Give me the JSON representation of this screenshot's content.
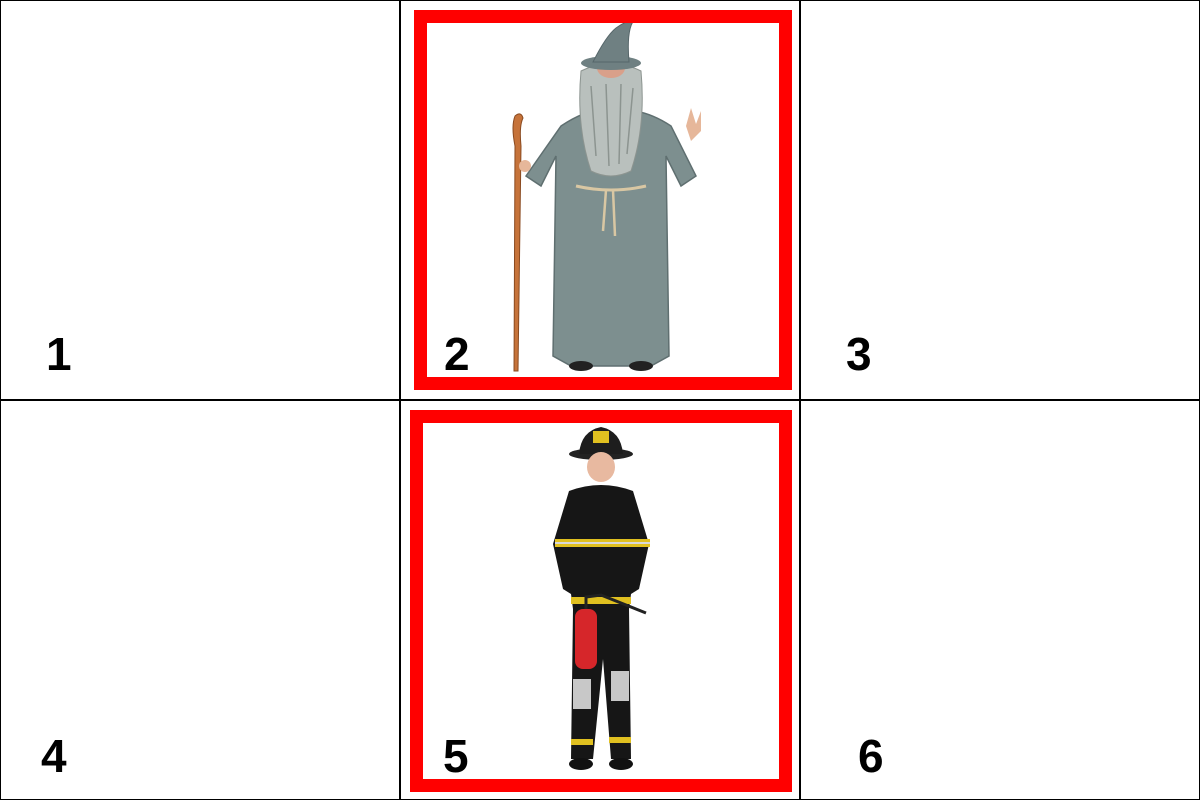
{
  "cells": [
    {
      "number": "1",
      "selected": false,
      "content": "empty"
    },
    {
      "number": "2",
      "selected": true,
      "content": "wizard-costume-icon"
    },
    {
      "number": "3",
      "selected": false,
      "content": "empty"
    },
    {
      "number": "4",
      "selected": false,
      "content": "empty"
    },
    {
      "number": "5",
      "selected": true,
      "content": "firefighter-costume-icon"
    },
    {
      "number": "6",
      "selected": false,
      "content": "empty"
    }
  ],
  "colors": {
    "selection_border": "#ff0000",
    "grid_line": "#000000",
    "background": "#ffffff"
  }
}
